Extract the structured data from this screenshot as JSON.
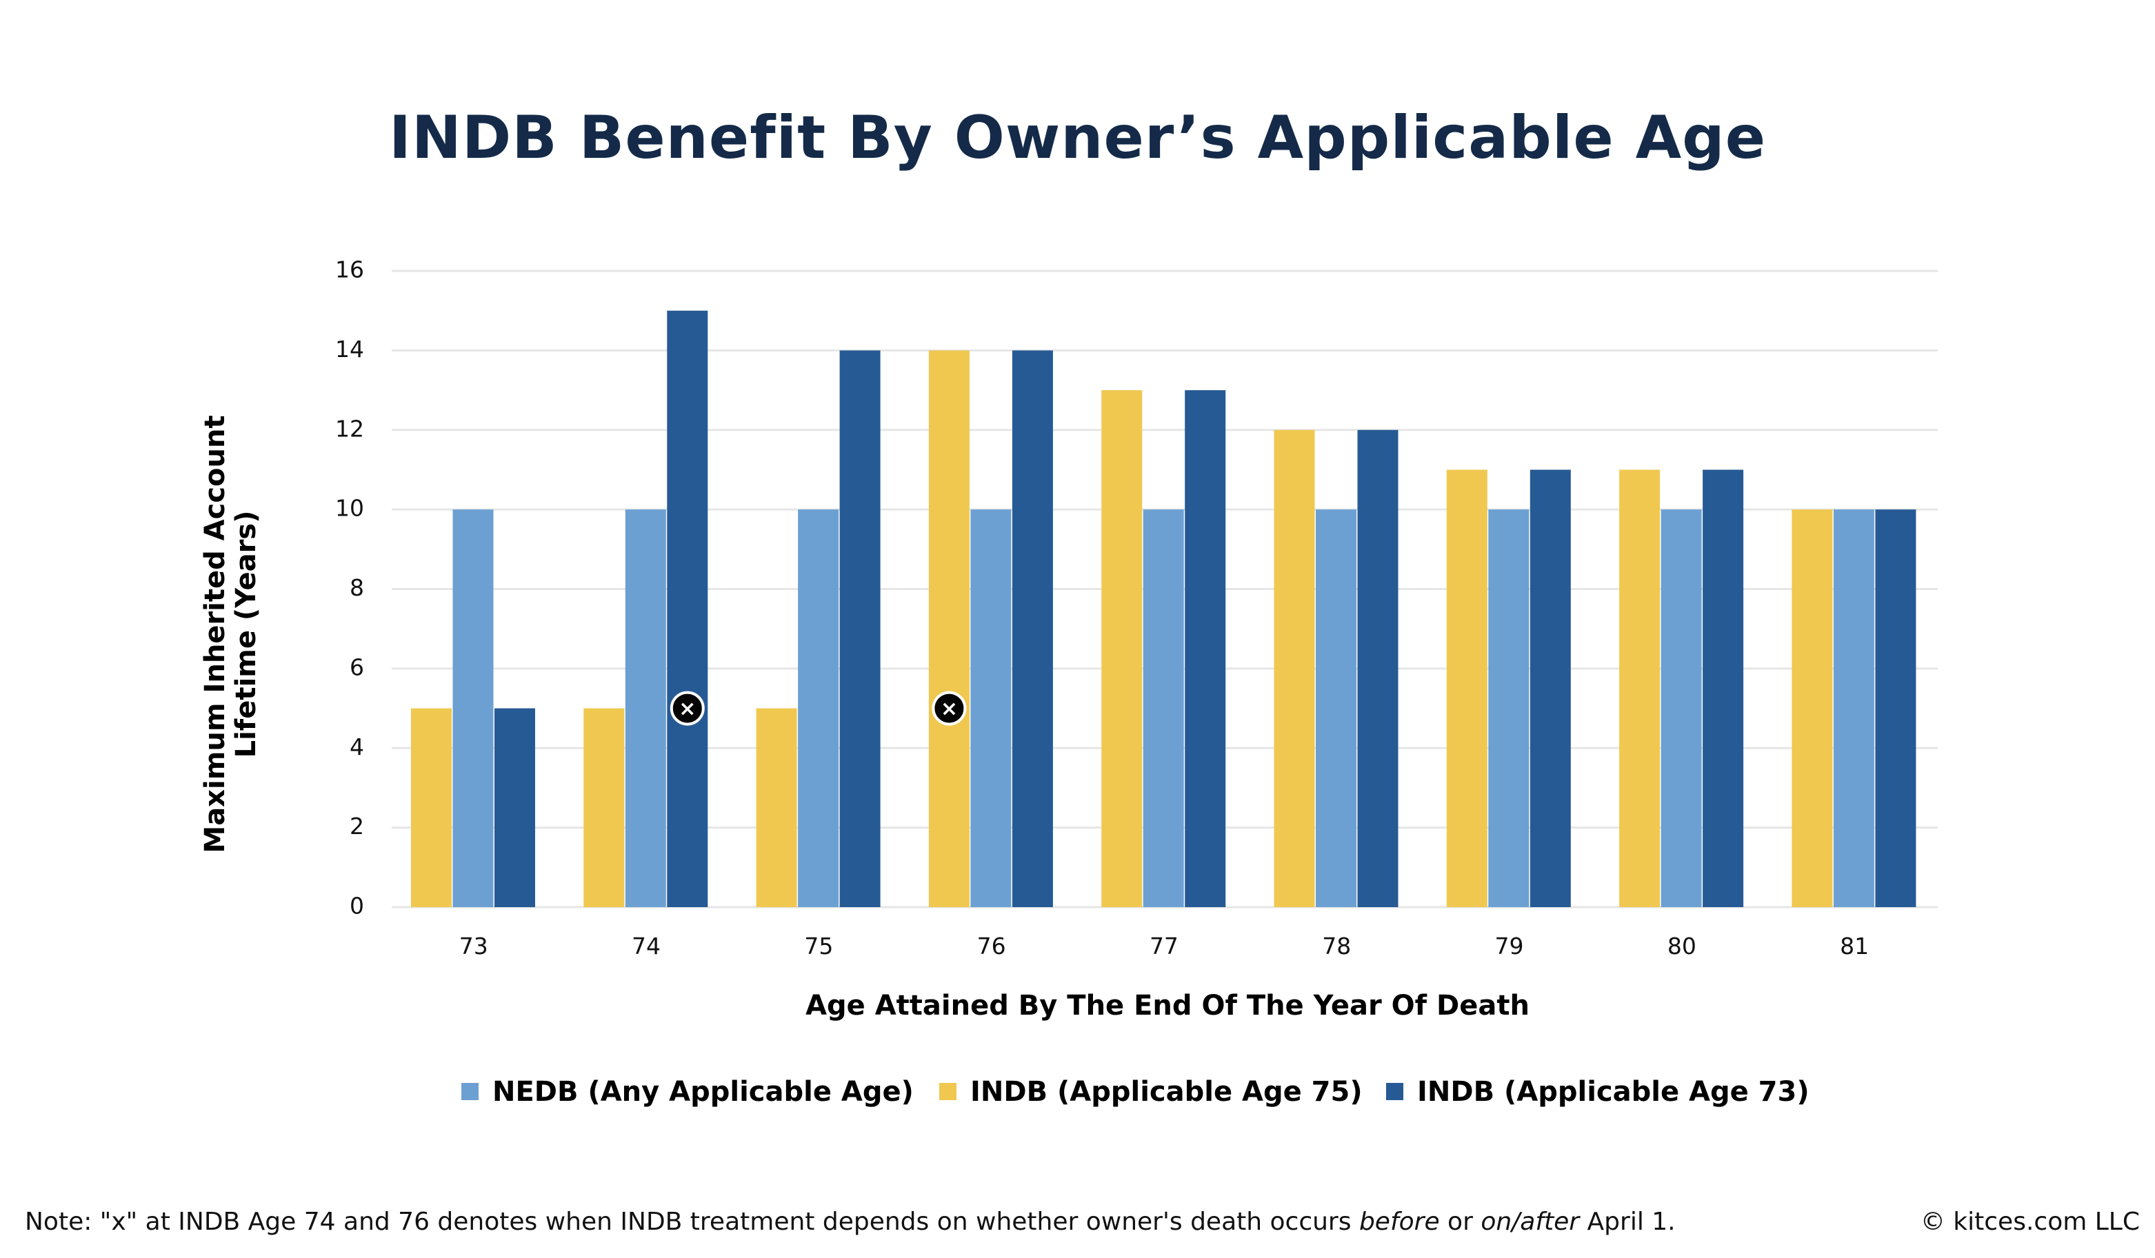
{
  "chart_data": {
    "type": "bar",
    "title": "INDB Benefit By Owner’s Applicable Age",
    "xlabel": "Age Attained By The End Of The Year Of Death",
    "ylabel_lines": [
      "Maximum Inherited Account",
      "Lifetime (Years)"
    ],
    "ylabel": "Maximum Inherited Account Lifetime (Years)",
    "ylim": [
      0,
      16
    ],
    "yticks": [
      0,
      2,
      4,
      6,
      8,
      10,
      12,
      14,
      16
    ],
    "grid": true,
    "legend_position": "bottom",
    "categories": [
      "73",
      "74",
      "75",
      "76",
      "77",
      "78",
      "79",
      "80",
      "81"
    ],
    "series": [
      {
        "name": "INDB (Applicable Age 75)",
        "color": "#F0C850",
        "values": [
          5,
          5,
          5,
          14,
          13,
          12,
          11,
          11,
          10
        ]
      },
      {
        "name": "NEDB (Any Applicable Age)",
        "color": "#6CA0D2",
        "values": [
          10,
          10,
          10,
          10,
          10,
          10,
          10,
          10,
          10
        ]
      },
      {
        "name": "INDB (Applicable Age 73)",
        "color": "#265A94",
        "values": [
          5,
          15,
          14,
          14,
          13,
          12,
          11,
          11,
          10
        ]
      }
    ],
    "legend_order": [
      1,
      0,
      2
    ],
    "annotations": [
      {
        "category": "74",
        "series": 2,
        "value": 5,
        "symbol": "×",
        "meaning": "INDB treatment depends on whether owner's death occurs before or on/after April 1"
      },
      {
        "category": "76",
        "series": 0,
        "value": 5,
        "symbol": "×",
        "meaning": "INDB treatment depends on whether owner's death occurs before or on/after April 1"
      }
    ]
  },
  "footer": {
    "note_parts": [
      {
        "text": "Note: \"x\" at INDB Age 74 and 76 denotes when INDB treatment depends on whether owner's death occurs ",
        "italic": false
      },
      {
        "text": "before",
        "italic": true
      },
      {
        "text": " or ",
        "italic": false
      },
      {
        "text": "on/after",
        "italic": true
      },
      {
        "text": " April 1.",
        "italic": false
      }
    ],
    "credit": "© kitces.com LLC"
  },
  "colors": {
    "title": "#142a48",
    "grid": "#e6e6e6",
    "marker_fill": "#050505",
    "marker_stroke": "#ffffff"
  }
}
